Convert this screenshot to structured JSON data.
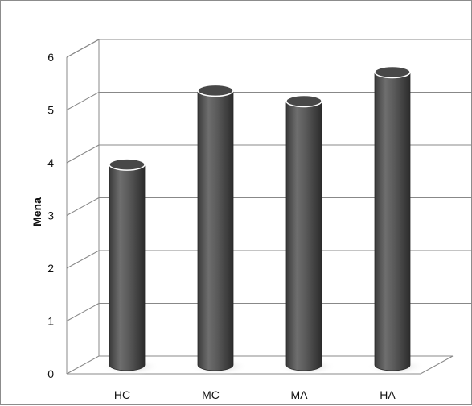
{
  "chart_data": {
    "type": "bar",
    "style": "3d-cylinder",
    "categories": [
      "HC",
      "MC",
      "MA",
      "HA"
    ],
    "values": [
      3.8,
      5.2,
      5.0,
      5.55
    ],
    "title": "",
    "xlabel": "",
    "ylabel": "Mena",
    "ylim": [
      0,
      6
    ],
    "yticks": [
      "0",
      "1",
      "2",
      "3",
      "4",
      "5",
      "6"
    ],
    "grid": true,
    "legend": "none",
    "colors": {
      "bar_body": "#5a5a5a",
      "bar_top": "#4a4a4a",
      "grid": "#888888"
    }
  }
}
